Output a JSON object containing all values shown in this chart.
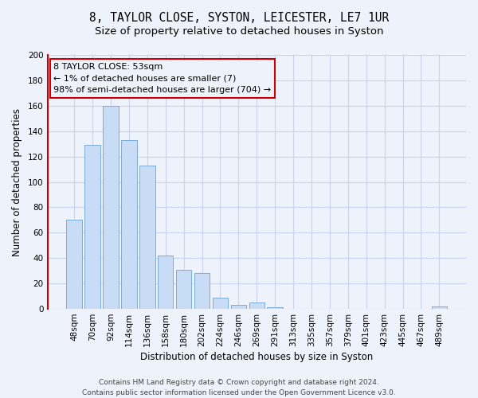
{
  "title": "8, TAYLOR CLOSE, SYSTON, LEICESTER, LE7 1UR",
  "subtitle": "Size of property relative to detached houses in Syston",
  "xlabel": "Distribution of detached houses by size in Syston",
  "ylabel": "Number of detached properties",
  "categories": [
    "48sqm",
    "70sqm",
    "92sqm",
    "114sqm",
    "136sqm",
    "158sqm",
    "180sqm",
    "202sqm",
    "224sqm",
    "246sqm",
    "269sqm",
    "291sqm",
    "313sqm",
    "335sqm",
    "357sqm",
    "379sqm",
    "401sqm",
    "423sqm",
    "445sqm",
    "467sqm",
    "489sqm"
  ],
  "values": [
    70,
    129,
    160,
    133,
    113,
    42,
    31,
    28,
    9,
    3,
    5,
    1,
    0,
    0,
    0,
    0,
    0,
    0,
    0,
    0,
    2
  ],
  "bar_color": "#c9dcf5",
  "bar_edge_color": "#7aacda",
  "highlight_color": "#cc0000",
  "ylim": [
    0,
    200
  ],
  "yticks": [
    0,
    20,
    40,
    60,
    80,
    100,
    120,
    140,
    160,
    180,
    200
  ],
  "annotation_title": "8 TAYLOR CLOSE: 53sqm",
  "annotation_line1": "← 1% of detached houses are smaller (7)",
  "annotation_line2": "98% of semi-detached houses are larger (704) →",
  "footer_line1": "Contains HM Land Registry data © Crown copyright and database right 2024.",
  "footer_line2": "Contains public sector information licensed under the Open Government Licence v3.0.",
  "background_color": "#eef2fb",
  "grid_color": "#c8d4ee",
  "title_fontsize": 10.5,
  "subtitle_fontsize": 9.5,
  "axis_label_fontsize": 8.5,
  "tick_fontsize": 7.5,
  "footer_fontsize": 6.5
}
